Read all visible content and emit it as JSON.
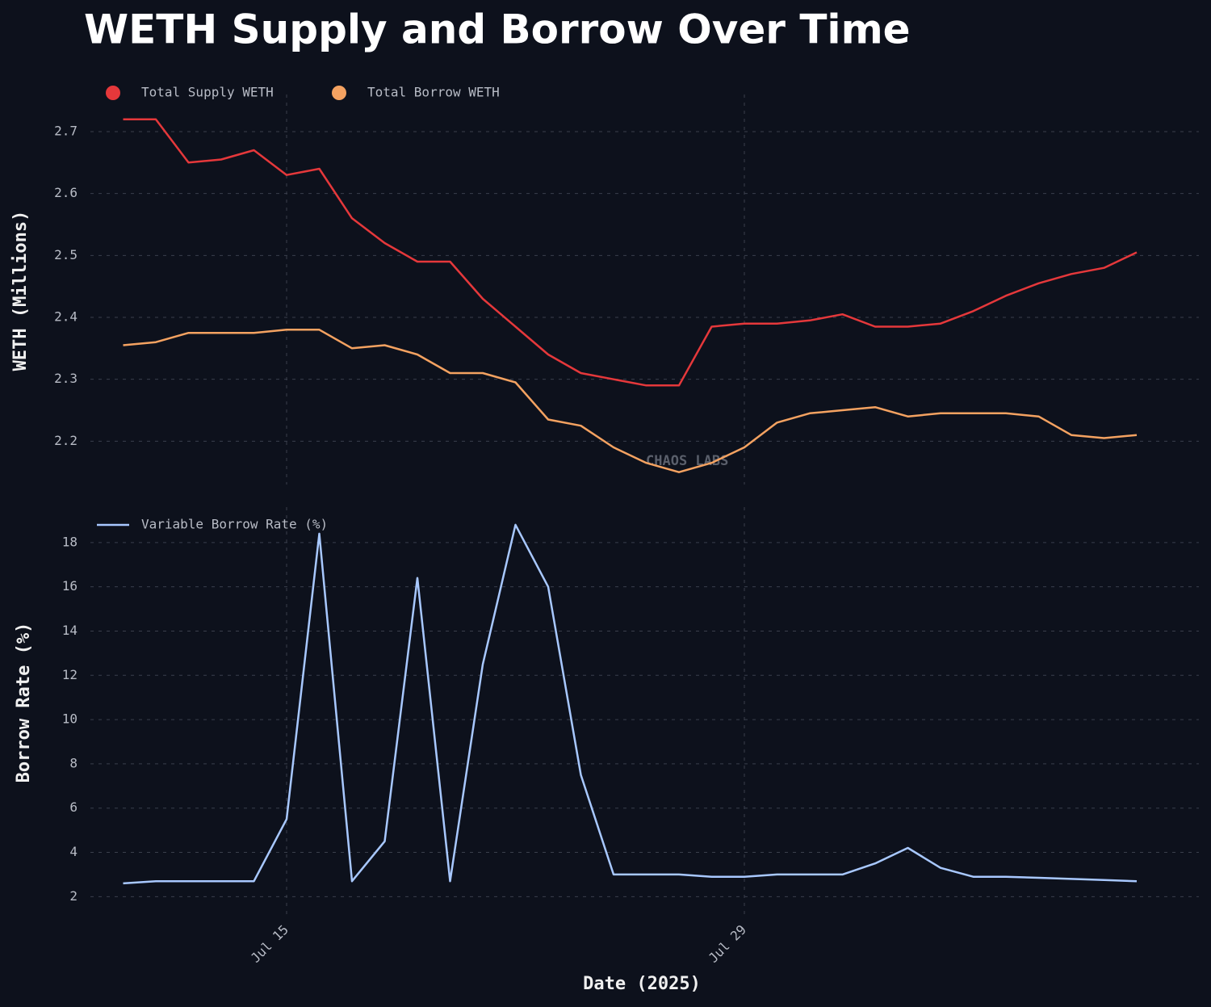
{
  "chart_data": [
    {
      "type": "line",
      "title": "WETH Supply and Borrow Over Time",
      "y_label": "WETH (Millions)",
      "watermark": "CHAOS LABS",
      "x": [
        "2025-07-10",
        "2025-07-11",
        "2025-07-12",
        "2025-07-13",
        "2025-07-14",
        "2025-07-15",
        "2025-07-16",
        "2025-07-17",
        "2025-07-18",
        "2025-07-19",
        "2025-07-20",
        "2025-07-21",
        "2025-07-22",
        "2025-07-23",
        "2025-07-24",
        "2025-07-25",
        "2025-07-26",
        "2025-07-27",
        "2025-07-28",
        "2025-07-29",
        "2025-07-30",
        "2025-07-31",
        "2025-08-01",
        "2025-08-02",
        "2025-08-03",
        "2025-08-04",
        "2025-08-05",
        "2025-08-06",
        "2025-08-07",
        "2025-08-08",
        "2025-08-09",
        "2025-08-10"
      ],
      "series": [
        {
          "name": "Total Supply WETH",
          "color": "#e5383b",
          "values": [
            2.72,
            2.72,
            2.65,
            2.655,
            2.67,
            2.63,
            2.64,
            2.56,
            2.52,
            2.49,
            2.49,
            2.43,
            2.385,
            2.34,
            2.31,
            2.3,
            2.29,
            2.29,
            2.385,
            2.39,
            2.39,
            2.395,
            2.405,
            2.385,
            2.385,
            2.39,
            2.41,
            2.435,
            2.455,
            2.47,
            2.48,
            2.505
          ]
        },
        {
          "name": "Total Borrow WETH",
          "color": "#f4a261",
          "values": [
            2.355,
            2.36,
            2.375,
            2.375,
            2.375,
            2.38,
            2.38,
            2.35,
            2.355,
            2.34,
            2.31,
            2.31,
            2.295,
            2.235,
            2.225,
            2.19,
            2.165,
            2.15,
            2.165,
            2.19,
            2.23,
            2.245,
            2.25,
            2.255,
            2.24,
            2.245,
            2.245,
            2.245,
            2.24,
            2.21,
            2.205,
            2.21
          ]
        }
      ],
      "xlim": [
        "2025-07-09",
        "2025-08-11"
      ],
      "ylim": [
        2.13,
        2.76
      ],
      "yticks": [
        2.2,
        2.3,
        2.4,
        2.5,
        2.6,
        2.7
      ],
      "grid": true,
      "legend": "top-left"
    },
    {
      "type": "line",
      "y_label": "Borrow Rate (%)",
      "x_label": "Date (2025)",
      "x": [
        "2025-07-10",
        "2025-07-11",
        "2025-07-12",
        "2025-07-13",
        "2025-07-14",
        "2025-07-15",
        "2025-07-16",
        "2025-07-17",
        "2025-07-18",
        "2025-07-19",
        "2025-07-20",
        "2025-07-21",
        "2025-07-22",
        "2025-07-23",
        "2025-07-24",
        "2025-07-25",
        "2025-07-26",
        "2025-07-27",
        "2025-07-28",
        "2025-07-29",
        "2025-07-30",
        "2025-07-31",
        "2025-08-01",
        "2025-08-02",
        "2025-08-03",
        "2025-08-04",
        "2025-08-05",
        "2025-08-06",
        "2025-08-07",
        "2025-08-08",
        "2025-08-09",
        "2025-08-10"
      ],
      "series": [
        {
          "name": "Variable Borrow Rate (%)",
          "color": "#a8c8ff",
          "values": [
            2.6,
            2.7,
            2.7,
            2.7,
            2.7,
            5.5,
            18.4,
            2.7,
            4.5,
            16.4,
            2.7,
            12.5,
            18.8,
            16,
            7.5,
            3.0,
            3.0,
            3.0,
            2.9,
            2.9,
            3.0,
            3.0,
            3.0,
            3.5,
            4.2,
            3.3,
            2.9,
            2.9,
            2.85,
            2.8,
            2.75,
            2.7
          ]
        }
      ],
      "xlim": [
        "2025-07-09",
        "2025-08-11"
      ],
      "xticks": [
        {
          "value": "2025-07-15",
          "label": "Jul 15"
        },
        {
          "value": "2025-07-29",
          "label": "Jul 29"
        }
      ],
      "ylim": [
        1.1,
        19.6
      ],
      "yticks": [
        2,
        4,
        6,
        8,
        10,
        12,
        14,
        16,
        18
      ],
      "grid": true,
      "legend": "top-left"
    }
  ]
}
